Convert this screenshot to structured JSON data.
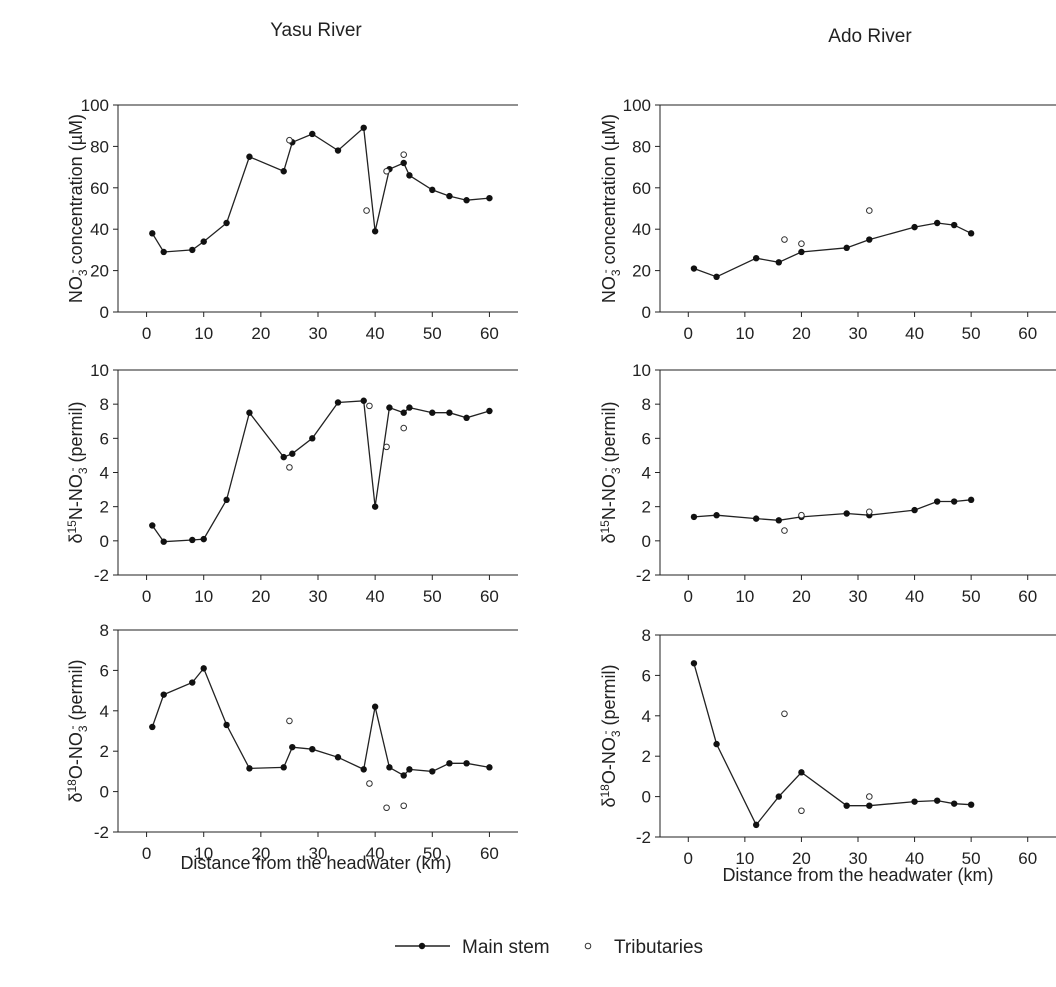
{
  "figure": {
    "columns": [
      {
        "title": "Yasu River",
        "xlabel": "Distance from the headwater (km)"
      },
      {
        "title": "Ado River",
        "xlabel": "Distance from the headwater (km)"
      }
    ],
    "legend": {
      "placement": "bottom-center",
      "main_stem": "Main stem",
      "tributaries": "Tributaries"
    }
  },
  "chart_data": [
    {
      "type": "line",
      "river": "Yasu River",
      "ylabel": {
        "main": "NO",
        "sub": "3",
        "sup": "-",
        "rest": " concentration (µM)"
      },
      "xlim": [
        -5,
        65
      ],
      "ylim": [
        0,
        100
      ],
      "xticks": [
        0,
        10,
        20,
        30,
        40,
        50,
        60
      ],
      "yticks": [
        0,
        20,
        40,
        60,
        80,
        100
      ],
      "series": [
        {
          "name": "Main stem",
          "style": "line-filled",
          "x": [
            1,
            3,
            8,
            10,
            14,
            18,
            24,
            25.5,
            29,
            33.5,
            38,
            40,
            42.5,
            45,
            46,
            50,
            53,
            56,
            60
          ],
          "y": [
            38,
            29,
            30,
            34,
            43,
            75,
            68,
            82,
            86,
            78,
            89,
            39,
            69,
            72,
            66,
            59,
            56,
            54,
            55
          ]
        },
        {
          "name": "Tributaries",
          "style": "open",
          "x": [
            25,
            38.5,
            42,
            45
          ],
          "y": [
            83,
            49,
            68,
            76
          ]
        }
      ]
    },
    {
      "type": "line",
      "river": "Ado River",
      "ylabel": {
        "main": "NO",
        "sub": "3",
        "sup": "-",
        "rest": " concentration (µM)"
      },
      "xlim": [
        -5,
        65
      ],
      "ylim": [
        0,
        100
      ],
      "xticks": [
        0,
        10,
        20,
        30,
        40,
        50,
        60
      ],
      "yticks": [
        0,
        20,
        40,
        60,
        80,
        100
      ],
      "series": [
        {
          "name": "Main stem",
          "style": "line-filled",
          "x": [
            1,
            5,
            12,
            16,
            20,
            28,
            32,
            40,
            44,
            47,
            50
          ],
          "y": [
            21,
            17,
            26,
            24,
            29,
            31,
            35,
            41,
            43,
            42,
            38
          ]
        },
        {
          "name": "Tributaries",
          "style": "open",
          "x": [
            17,
            20,
            32
          ],
          "y": [
            35,
            33,
            49
          ]
        }
      ]
    },
    {
      "type": "line",
      "river": "Yasu River",
      "ylabel": {
        "main": "δ",
        "sup": "15",
        "main2": "N-NO",
        "sub": "3",
        "sup2": "-",
        "rest": " (permil)"
      },
      "xlim": [
        -5,
        65
      ],
      "ylim": [
        -2,
        10
      ],
      "xticks": [
        0,
        10,
        20,
        30,
        40,
        50,
        60
      ],
      "yticks": [
        -2,
        0,
        2,
        4,
        6,
        8,
        10
      ],
      "series": [
        {
          "name": "Main stem",
          "style": "line-filled",
          "x": [
            1,
            3,
            8,
            10,
            14,
            18,
            24,
            25.5,
            29,
            33.5,
            38,
            40,
            42.5,
            45,
            46,
            50,
            53,
            56,
            60
          ],
          "y": [
            0.9,
            -0.05,
            0.05,
            0.1,
            2.4,
            7.5,
            4.9,
            5.1,
            6.0,
            8.1,
            8.2,
            2.0,
            7.8,
            7.5,
            7.8,
            7.5,
            7.5,
            7.2,
            7.6
          ]
        },
        {
          "name": "Tributaries",
          "style": "open",
          "x": [
            25,
            39,
            42,
            45
          ],
          "y": [
            4.3,
            7.9,
            5.5,
            6.6
          ]
        }
      ]
    },
    {
      "type": "line",
      "river": "Ado River",
      "ylabel": {
        "main": "δ",
        "sup": "15",
        "main2": "N-NO",
        "sub": "3",
        "sup2": "-",
        "rest": " (permil)"
      },
      "xlim": [
        -5,
        65
      ],
      "ylim": [
        -2,
        10
      ],
      "xticks": [
        0,
        10,
        20,
        30,
        40,
        50,
        60
      ],
      "yticks": [
        -2,
        0,
        2,
        4,
        6,
        8,
        10
      ],
      "series": [
        {
          "name": "Main stem",
          "style": "line-filled",
          "x": [
            1,
            5,
            12,
            16,
            20,
            28,
            32,
            40,
            44,
            47,
            50
          ],
          "y": [
            1.4,
            1.5,
            1.3,
            1.2,
            1.4,
            1.6,
            1.5,
            1.8,
            2.3,
            2.3,
            2.4
          ]
        },
        {
          "name": "Tributaries",
          "style": "open",
          "x": [
            17,
            20,
            32
          ],
          "y": [
            0.6,
            1.5,
            1.7
          ]
        }
      ]
    },
    {
      "type": "line",
      "river": "Yasu River",
      "ylabel": {
        "main": "δ",
        "sup": "18",
        "main2": "O-NO",
        "sub": "3",
        "sup2": "-",
        "rest": " (permil)"
      },
      "xlim": [
        -5,
        65
      ],
      "ylim": [
        -2,
        8
      ],
      "xticks": [
        0,
        10,
        20,
        30,
        40,
        50,
        60
      ],
      "yticks": [
        -2,
        0,
        2,
        4,
        6,
        8
      ],
      "series": [
        {
          "name": "Main stem",
          "style": "line-filled",
          "x": [
            1,
            3,
            8,
            10,
            14,
            18,
            24,
            25.5,
            29,
            33.5,
            38,
            40,
            42.5,
            45,
            46,
            50,
            53,
            56,
            60
          ],
          "y": [
            3.2,
            4.8,
            5.4,
            6.1,
            3.3,
            1.15,
            1.2,
            2.2,
            2.1,
            1.7,
            1.1,
            4.2,
            1.2,
            0.8,
            1.1,
            1.0,
            1.4,
            1.4,
            1.2
          ]
        },
        {
          "name": "Tributaries",
          "style": "open",
          "x": [
            25,
            39,
            42,
            45
          ],
          "y": [
            3.5,
            0.4,
            -0.8,
            -0.7
          ]
        }
      ]
    },
    {
      "type": "line",
      "river": "Ado River",
      "ylabel": {
        "main": "δ",
        "sup": "18",
        "main2": "O-NO",
        "sub": "3",
        "sup2": "-",
        "rest": " (permil)"
      },
      "xlim": [
        -5,
        65
      ],
      "ylim": [
        -2,
        8
      ],
      "xticks": [
        0,
        10,
        20,
        30,
        40,
        50,
        60
      ],
      "yticks": [
        -2,
        0,
        2,
        4,
        6,
        8
      ],
      "series": [
        {
          "name": "Main stem",
          "style": "line-filled",
          "x": [
            1,
            5,
            12,
            16,
            20,
            28,
            32,
            40,
            44,
            47,
            50
          ],
          "y": [
            6.6,
            2.6,
            -1.4,
            0,
            1.2,
            -0.45,
            -0.45,
            -0.25,
            -0.2,
            -0.35,
            -0.4
          ]
        },
        {
          "name": "Tributaries",
          "style": "open",
          "x": [
            17,
            20,
            32
          ],
          "y": [
            4.1,
            -0.7,
            0
          ]
        }
      ]
    }
  ]
}
